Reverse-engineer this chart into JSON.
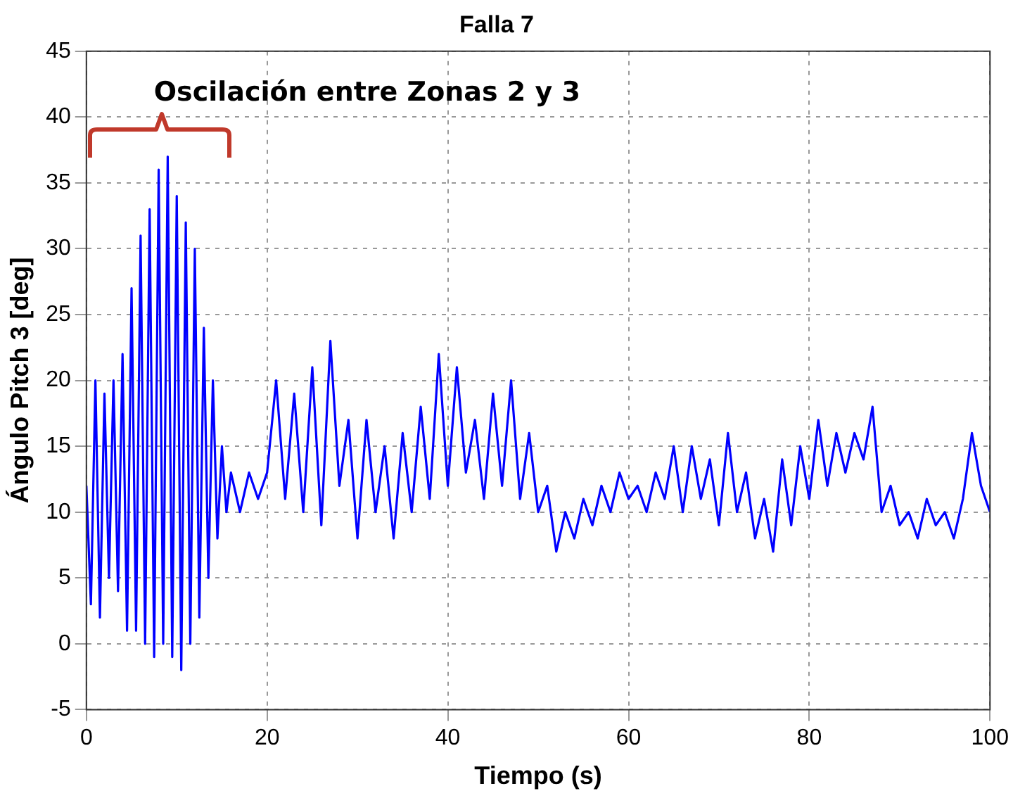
{
  "chart_data": {
    "type": "line",
    "title": "Falla 7",
    "xlabel": "Tiempo (s)",
    "ylabel": "Ángulo Pitch 3 [deg]",
    "annotations": [
      "Oscilación entre Zonas 2 y 3"
    ],
    "xlim": [
      0,
      100
    ],
    "xticks": [
      0,
      20,
      40,
      60,
      80,
      100
    ],
    "ylim": [
      -5,
      45
    ],
    "yticks": [
      -5,
      0,
      5,
      10,
      15,
      20,
      25,
      30,
      35,
      40,
      45
    ],
    "grid": true,
    "marker": "none",
    "line_style": "solid",
    "series": [
      {
        "color": "#0000ff",
        "x": [
          0,
          0.5,
          1,
          1.5,
          2,
          2.5,
          3,
          3.5,
          4,
          4.5,
          5,
          5.5,
          6,
          6.5,
          7,
          7.5,
          8,
          8.5,
          9,
          9.5,
          10,
          10.5,
          11,
          11.5,
          12,
          12.5,
          13,
          13.5,
          14,
          14.5,
          15,
          15.5,
          16,
          17,
          18,
          19,
          20,
          21,
          22,
          23,
          24,
          25,
          26,
          27,
          28,
          29,
          30,
          31,
          32,
          33,
          34,
          35,
          36,
          37,
          38,
          39,
          40,
          41,
          42,
          43,
          44,
          45,
          46,
          47,
          48,
          49,
          50,
          51,
          52,
          53,
          54,
          55,
          56,
          57,
          58,
          59,
          60,
          61,
          62,
          63,
          64,
          65,
          66,
          67,
          68,
          69,
          70,
          71,
          72,
          73,
          74,
          75,
          76,
          77,
          78,
          79,
          80,
          81,
          82,
          83,
          84,
          85,
          86,
          87,
          88,
          89,
          90,
          91,
          92,
          93,
          94,
          95,
          96,
          97,
          98,
          99,
          100
        ],
        "values": [
          12,
          3,
          20,
          2,
          19,
          5,
          20,
          4,
          22,
          1,
          27,
          1,
          31,
          0,
          33,
          -1,
          36,
          0,
          37,
          -1,
          34,
          -2,
          32,
          0,
          30,
          2,
          24,
          5,
          20,
          8,
          15,
          10,
          13,
          10,
          13,
          11,
          13,
          20,
          11,
          19,
          10,
          21,
          9,
          23,
          12,
          17,
          8,
          17,
          10,
          15,
          8,
          16,
          10,
          18,
          11,
          22,
          12,
          21,
          13,
          17,
          11,
          19,
          12,
          20,
          11,
          16,
          10,
          12,
          7,
          10,
          8,
          11,
          9,
          12,
          10,
          13,
          11,
          12,
          10,
          13,
          11,
          15,
          10,
          15,
          11,
          14,
          9,
          16,
          10,
          13,
          8,
          11,
          7,
          14,
          9,
          15,
          11,
          17,
          12,
          16,
          13,
          16,
          14,
          18,
          10,
          12,
          9,
          10,
          8,
          11,
          9,
          10,
          8,
          11,
          16,
          12,
          10
        ]
      }
    ]
  }
}
